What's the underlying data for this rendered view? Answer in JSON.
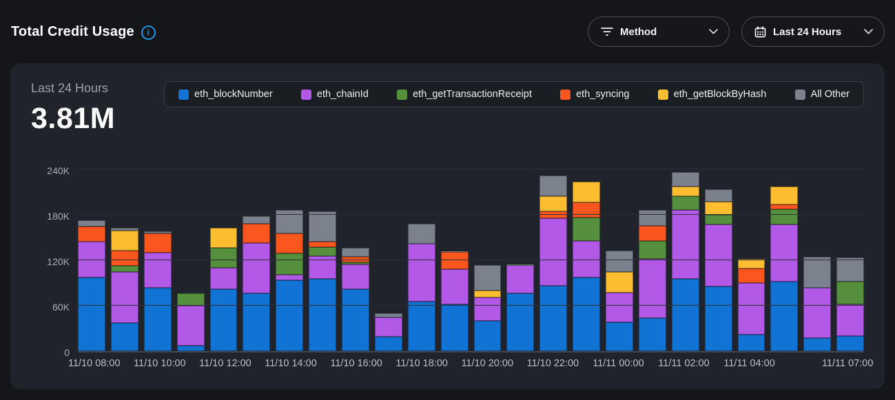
{
  "header": {
    "title": "Total Credit Usage",
    "filters": {
      "method": {
        "label": "Method",
        "icon": "filter-icon"
      },
      "time_range": {
        "label": "Last 24 Hours",
        "icon": "calendar-icon"
      }
    }
  },
  "panel": {
    "range_label": "Last 24 Hours",
    "total_value": "3.81M"
  },
  "chart_data": {
    "type": "bar",
    "stacked": true,
    "title": "Total Credit Usage",
    "subtitle": "Last 24 Hours",
    "total_label": "3.81M",
    "values_unit": "credits, in thousands (K)",
    "grid": true,
    "legend_position": "top",
    "ylim": [
      0,
      240
    ],
    "y_ticks": [
      {
        "label": "0",
        "value": 0
      },
      {
        "label": "60K",
        "value": 60
      },
      {
        "label": "120K",
        "value": 120
      },
      {
        "label": "180K",
        "value": 180
      },
      {
        "label": "240K",
        "value": 240
      }
    ],
    "x_ticks": [
      {
        "label": "11/10 08:00",
        "bar": 0
      },
      {
        "label": "11/10 10:00",
        "bar": 2
      },
      {
        "label": "11/10 12:00",
        "bar": 4
      },
      {
        "label": "11/10 14:00",
        "bar": 6
      },
      {
        "label": "11/10 16:00",
        "bar": 8
      },
      {
        "label": "11/10 18:00",
        "bar": 10
      },
      {
        "label": "11/10 20:00",
        "bar": 12
      },
      {
        "label": "11/10 22:00",
        "bar": 14
      },
      {
        "label": "11/11 00:00",
        "bar": 16
      },
      {
        "label": "11/11 02:00",
        "bar": 18
      },
      {
        "label": "11/11 04:00",
        "bar": 20
      },
      {
        "label": "11/11 07:00",
        "bar": 23
      }
    ],
    "series": [
      {
        "name": "eth_blockNumber",
        "color": "#1173d4",
        "values": [
          97,
          37,
          84,
          7,
          82,
          76,
          94,
          95,
          82,
          19,
          65,
          62,
          40,
          76,
          86,
          97,
          38,
          44,
          95,
          85,
          22,
          92,
          17,
          20
        ]
      },
      {
        "name": "eth_chainId",
        "color": "#b259e7",
        "values": [
          47,
          67,
          46,
          53,
          28,
          66,
          7,
          30,
          33,
          25,
          76,
          46,
          31,
          37,
          89,
          48,
          39,
          78,
          91,
          82,
          68,
          75,
          66,
          42
        ]
      },
      {
        "name": "eth_getTransactionReceipt",
        "color": "#55913d",
        "values": [
          0,
          8,
          0,
          16,
          26,
          0,
          28,
          12,
          3,
          0,
          0,
          0,
          0,
          1,
          0,
          31,
          0,
          24,
          18,
          13,
          0,
          20,
          0,
          30
        ]
      },
      {
        "name": "eth_syncing",
        "color": "#fc561f",
        "values": [
          20,
          20,
          25,
          0,
          0,
          25,
          26,
          7,
          7,
          0,
          0,
          23,
          0,
          0,
          9,
          20,
          0,
          20,
          0,
          0,
          19,
          6,
          0,
          0
        ]
      },
      {
        "name": "eth_getBlockByHash",
        "color": "#fdbd31",
        "values": [
          0,
          26,
          0,
          0,
          26,
          0,
          0,
          0,
          0,
          0,
          0,
          0,
          9,
          0,
          20,
          27,
          27,
          0,
          13,
          17,
          13,
          24,
          0,
          0
        ]
      },
      {
        "name": "All Other",
        "color": "#7b828d",
        "values": [
          8,
          4,
          3,
          0,
          0,
          10,
          31,
          40,
          12,
          5,
          26,
          1,
          34,
          0,
          27,
          0,
          28,
          21,
          19,
          16,
          0,
          0,
          41,
          32
        ]
      }
    ]
  },
  "colors": {
    "accent_info": "#2397e8",
    "page_bg": "#141619",
    "panel_bg": "#20242a"
  }
}
